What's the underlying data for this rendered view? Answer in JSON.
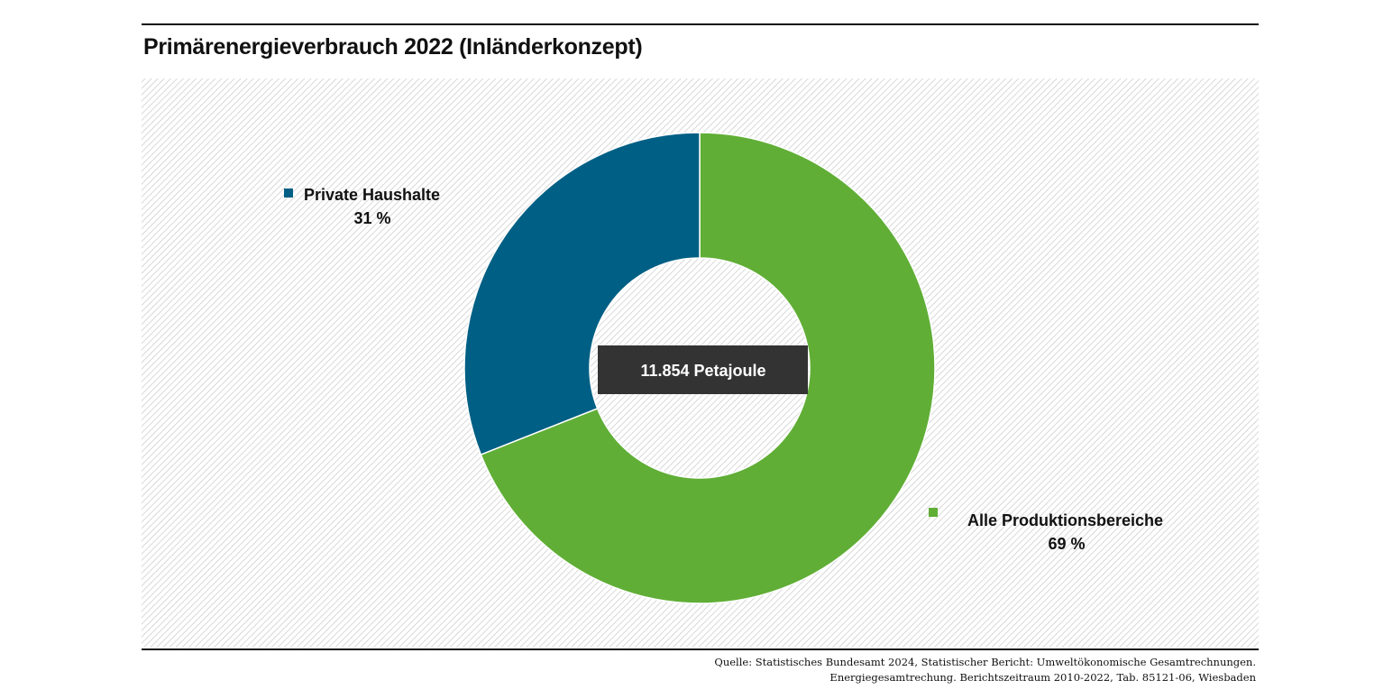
{
  "title": "Primärenergieverbrauch 2022 (Inländerkonzept)",
  "source": [
    "Quelle: Statistisches Bundesamt 2024, Statistischer Bericht: Umweltökonomische Gesamtrechnungen.",
    "Energiegesamtrechung. Berichtszeitraum 2010-2022, Tab. 85121-06, Wiesbaden"
  ],
  "chart_data": {
    "type": "pie",
    "variant": "donut",
    "center_label": "11.854 Petajoule",
    "slices": [
      {
        "name": "Alle Produktionsbereiche",
        "value": 69,
        "label": "69 %",
        "color": "#60ae36"
      },
      {
        "name": "Private Haushalte",
        "value": 31,
        "label": "31 %",
        "color": "#005f84"
      }
    ],
    "legend": "labels beside slices",
    "background": "diagonal hatch"
  }
}
